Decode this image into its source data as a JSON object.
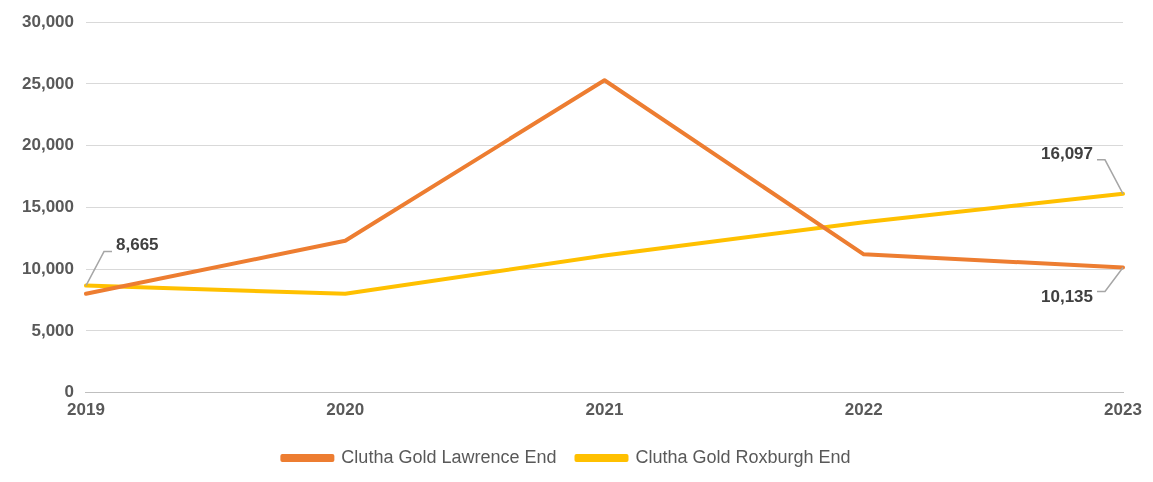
{
  "chart_data": {
    "type": "line",
    "categories": [
      "2019",
      "2020",
      "2021",
      "2022",
      "2023"
    ],
    "series": [
      {
        "name": "Clutha Gold Lawrence End",
        "color": "#ed7d31",
        "values": [
          8000,
          12300,
          25300,
          11200,
          10135
        ],
        "value_labels": [
          null,
          null,
          null,
          null,
          "10,135"
        ]
      },
      {
        "name": "Clutha Gold Roxburgh End",
        "color": "#ffc000",
        "values": [
          8665,
          8000,
          11100,
          13800,
          16097
        ],
        "value_labels": [
          "8,665",
          null,
          null,
          null,
          "16,097"
        ]
      }
    ],
    "ylim": [
      0,
      30000
    ],
    "yticks": [
      {
        "value": 0,
        "label": "0"
      },
      {
        "value": 5000,
        "label": "5,000"
      },
      {
        "value": 10000,
        "label": "10,000"
      },
      {
        "value": 15000,
        "label": "15,000"
      },
      {
        "value": 20000,
        "label": "20,000"
      },
      {
        "value": 25000,
        "label": "25,000"
      },
      {
        "value": 30000,
        "label": "30,000"
      }
    ],
    "grid": "y",
    "legend": "bottom",
    "marker": "none",
    "line_style": "solid"
  }
}
